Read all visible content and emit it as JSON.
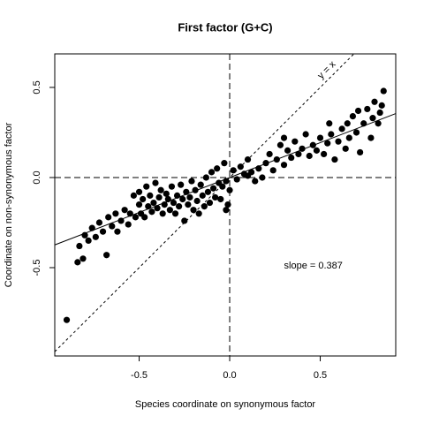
{
  "chart_data": {
    "type": "scatter",
    "title": "First factor (G+C)",
    "x_label": "Species coordinate on synonymous factor",
    "y_label": "Coordinate on non-synonymous factor",
    "xlim": [
      -0.966,
      0.917
    ],
    "ylim": [
      -0.99,
      0.686
    ],
    "xticks": [
      -0.5,
      {
        "value": 0,
        "label": "0.0"
      },
      0.5
    ],
    "yticks": [
      -0.5,
      {
        "value": 0,
        "label": "0.0"
      },
      0.5
    ],
    "hlines": [
      0
    ],
    "vlines": [
      0
    ],
    "identity_label": "y = x",
    "fit": {
      "slope": 0.387,
      "intercept": 0,
      "label": "slope =  0.387",
      "label_x": 0.3,
      "label_y": -0.49
    },
    "color": "#000000",
    "x": [
      -0.9,
      -0.84,
      -0.81,
      -0.83,
      -0.8,
      -0.78,
      -0.76,
      -0.74,
      -0.72,
      -0.7,
      -0.68,
      -0.67,
      -0.65,
      -0.63,
      -0.62,
      -0.6,
      -0.58,
      -0.56,
      -0.55,
      -0.53,
      -0.52,
      -0.5,
      -0.5,
      -0.49,
      -0.48,
      -0.47,
      -0.46,
      -0.45,
      -0.44,
      -0.43,
      -0.42,
      -0.41,
      -0.4,
      -0.39,
      -0.38,
      -0.37,
      -0.36,
      -0.35,
      -0.34,
      -0.33,
      -0.32,
      -0.31,
      -0.3,
      -0.29,
      -0.28,
      -0.27,
      -0.26,
      -0.25,
      -0.24,
      -0.23,
      -0.22,
      -0.21,
      -0.2,
      -0.19,
      -0.18,
      -0.17,
      -0.16,
      -0.15,
      -0.14,
      -0.13,
      -0.12,
      -0.11,
      -0.1,
      -0.09,
      -0.08,
      -0.07,
      -0.06,
      -0.05,
      -0.04,
      -0.03,
      -0.02,
      -0.01,
      0.0,
      0.02,
      0.04,
      0.06,
      0.08,
      0.1,
      0.12,
      0.14,
      0.16,
      0.18,
      0.2,
      0.22,
      0.24,
      0.26,
      0.28,
      0.3,
      0.32,
      0.34,
      0.36,
      0.38,
      0.4,
      0.42,
      0.44,
      0.46,
      0.48,
      0.5,
      0.52,
      0.54,
      0.56,
      0.58,
      0.6,
      0.62,
      0.64,
      0.66,
      0.68,
      0.7,
      0.72,
      0.74,
      0.76,
      0.78,
      0.8,
      0.82,
      0.83,
      0.85,
      0.84,
      0.79,
      0.71,
      0.65,
      0.55,
      0.3,
      0.1,
      -0.02
    ],
    "y": [
      -0.79,
      -0.47,
      -0.45,
      -0.38,
      -0.32,
      -0.35,
      -0.28,
      -0.33,
      -0.25,
      -0.3,
      -0.43,
      -0.22,
      -0.27,
      -0.2,
      -0.3,
      -0.24,
      -0.18,
      -0.26,
      -0.2,
      -0.1,
      -0.22,
      -0.15,
      -0.08,
      -0.2,
      -0.12,
      -0.22,
      -0.05,
      -0.16,
      -0.1,
      -0.19,
      -0.14,
      -0.03,
      -0.17,
      -0.11,
      -0.07,
      -0.2,
      -0.15,
      -0.09,
      -0.12,
      -0.18,
      -0.05,
      -0.14,
      -0.2,
      -0.1,
      -0.16,
      -0.04,
      -0.12,
      -0.24,
      -0.08,
      -0.15,
      -0.11,
      -0.02,
      -0.18,
      -0.07,
      -0.13,
      -0.2,
      -0.04,
      -0.1,
      -0.16,
      0.0,
      -0.08,
      -0.14,
      0.03,
      -0.06,
      -0.11,
      0.05,
      -0.03,
      -0.12,
      -0.05,
      0.08,
      -0.02,
      -0.15,
      -0.07,
      0.04,
      -0.01,
      0.06,
      0.02,
      0.1,
      0.03,
      -0.02,
      0.05,
      0.0,
      0.08,
      0.13,
      0.04,
      0.1,
      0.18,
      0.07,
      0.15,
      0.11,
      0.2,
      0.13,
      0.16,
      0.24,
      0.12,
      0.18,
      0.15,
      0.22,
      0.13,
      0.19,
      0.24,
      0.1,
      0.2,
      0.27,
      0.16,
      0.22,
      0.34,
      0.25,
      0.14,
      0.3,
      0.38,
      0.22,
      0.42,
      0.3,
      0.36,
      0.48,
      0.4,
      0.33,
      0.37,
      0.3,
      0.3,
      0.22,
      0.01,
      -0.18
    ]
  }
}
